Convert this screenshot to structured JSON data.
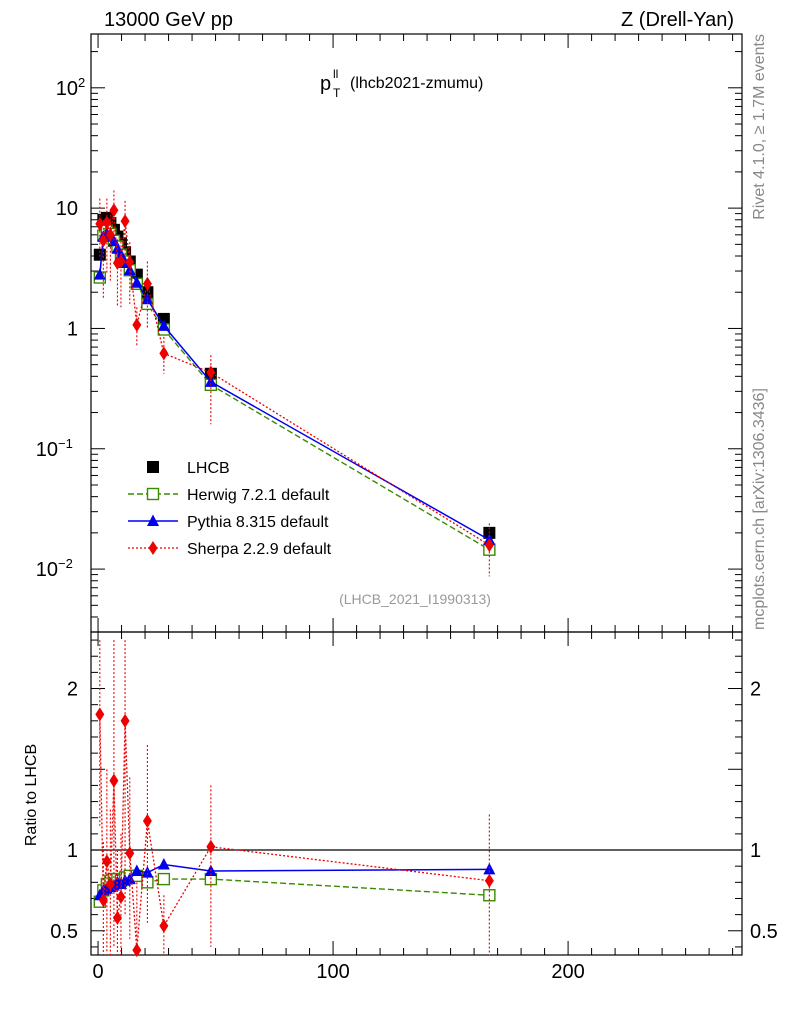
{
  "header": {
    "left": "13000 GeV pp",
    "right": "Z (Drell-Yan)"
  },
  "side_labels": {
    "rivet": "Rivet 4.1.0, ≥ 1.7M events",
    "mcplots": "mcplots.cern.ch [arXiv:1306.3436]"
  },
  "colors": {
    "lhcb": "#000000",
    "herwig": "#3a8a00",
    "pythia": "#0000ee",
    "sherpa": "#ee0000"
  },
  "chart_data": [
    {
      "type": "scatter",
      "panel": "main",
      "title_main": "p",
      "title_sup": "ll",
      "title_sub": "T",
      "title_rest": "(lhcb2021-zmumu)",
      "watermark": "(LHCB_2021_I1990313)",
      "xlabel": "",
      "ylabel": "",
      "yscale": "log",
      "xlim": [
        -3,
        274
      ],
      "ylim": [
        0.003,
        280
      ],
      "y_ticks": [
        {
          "base": "10",
          "exp": "2"
        },
        {
          "base": "10",
          "exp": ""
        },
        {
          "base": "1",
          "exp": ""
        },
        {
          "base": "10",
          "exp": "−1"
        },
        {
          "base": "10",
          "exp": "−2"
        }
      ],
      "y_tick_values": [
        100,
        10,
        1,
        0.1,
        0.01
      ],
      "legend": [
        {
          "label": "LHCB",
          "series": "lhcb"
        },
        {
          "label": "Herwig 7.2.1 default",
          "series": "herwig"
        },
        {
          "label": "Pythia 8.315 default",
          "series": "pythia"
        },
        {
          "label": "Sherpa 2.2.9 default",
          "series": "sherpa"
        }
      ],
      "x": [
        0.75,
        2.25,
        3.75,
        5.25,
        6.75,
        8.25,
        9.75,
        11.5,
        13.5,
        16.5,
        21,
        28,
        48,
        166.5
      ],
      "series": [
        {
          "name": "LHCB",
          "key": "lhcb",
          "marker": "square",
          "values": [
            4.1,
            8.0,
            8.3,
            7.5,
            6.6,
            5.8,
            5.1,
            4.3,
            3.6,
            2.8,
            2.0,
            1.2,
            0.42,
            0.02
          ]
        },
        {
          "name": "Herwig 7.2.1 default",
          "key": "herwig",
          "marker": "open-square",
          "values": [
            2.65,
            5.9,
            6.5,
            6.1,
            5.35,
            4.8,
            4.1,
            3.6,
            3.05,
            2.35,
            1.6,
            0.98,
            0.34,
            0.0145
          ]
        },
        {
          "name": "Pythia 8.315 default",
          "key": "pythia",
          "marker": "triangle",
          "values": [
            2.8,
            5.8,
            6.1,
            5.8,
            5.3,
            4.6,
            4.1,
            3.5,
            3.05,
            2.4,
            1.75,
            1.05,
            0.36,
            0.0175
          ]
        },
        {
          "name": "Sherpa 2.2.9 default",
          "key": "sherpa",
          "marker": "diamond",
          "values": [
            7.4,
            5.4,
            7.6,
            6.0,
            9.6,
            3.5,
            3.6,
            7.8,
            3.55,
            1.07,
            2.35,
            0.62,
            0.43,
            0.0158
          ],
          "err_lo": [
            3.8,
            1.8,
            2.8,
            2.5,
            5.2,
            1.5,
            1.5,
            4.0,
            1.6,
            0.7,
            1.0,
            0.42,
            0.16,
            0.0087
          ],
          "err_hi": [
            12.0,
            8.0,
            12.0,
            9.5,
            14.0,
            5.5,
            5.7,
            11.5,
            5.2,
            1.5,
            3.6,
            0.85,
            0.6,
            0.024
          ]
        }
      ]
    },
    {
      "type": "scatter",
      "panel": "ratio",
      "ylabel": "Ratio to LHCB",
      "xlabel": "",
      "xlim": [
        -3,
        274
      ],
      "ylim": [
        0.35,
        2.35
      ],
      "x_ticks": [
        0,
        100,
        200
      ],
      "y_ticks": [
        0.5,
        1,
        2
      ],
      "y_tick_labels": [
        "0.5",
        "1",
        "2"
      ],
      "reference_line": 1,
      "x": [
        0.75,
        2.25,
        3.75,
        5.25,
        6.75,
        8.25,
        9.75,
        11.5,
        13.5,
        16.5,
        21,
        28,
        48,
        166.5
      ],
      "series": [
        {
          "name": "Herwig 7.2.1 default",
          "key": "herwig",
          "marker": "open-square",
          "values": [
            0.68,
            0.75,
            0.79,
            0.81,
            0.82,
            0.82,
            0.81,
            0.83,
            0.84,
            0.84,
            0.8,
            0.82,
            0.82,
            0.72
          ]
        },
        {
          "name": "Pythia 8.315 default",
          "key": "pythia",
          "marker": "triangle",
          "values": [
            0.72,
            0.75,
            0.76,
            0.77,
            0.78,
            0.8,
            0.79,
            0.81,
            0.82,
            0.87,
            0.86,
            0.91,
            0.87,
            0.88
          ]
        },
        {
          "name": "Sherpa 2.2.9 default",
          "key": "sherpa",
          "marker": "diamond",
          "values": [
            1.84,
            0.69,
            0.93,
            0.79,
            1.43,
            0.58,
            0.71,
            1.8,
            0.98,
            0.38,
            1.18,
            0.53,
            1.02,
            0.81
          ],
          "err_lo": [
            1.15,
            0.33,
            0.36,
            0.35,
            0.4,
            0.35,
            0.35,
            0.6,
            0.45,
            0.35,
            0.55,
            0.35,
            0.4,
            0.35
          ],
          "err_hi": [
            2.3,
            1.05,
            1.5,
            1.25,
            2.3,
            1.0,
            1.1,
            2.3,
            1.45,
            0.8,
            1.65,
            0.72,
            1.4,
            1.22
          ]
        }
      ]
    }
  ]
}
